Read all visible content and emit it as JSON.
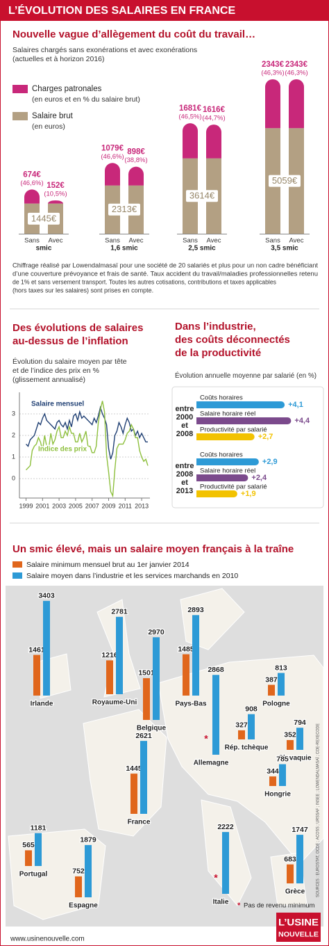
{
  "header": {
    "title": "L’ÉVOLUTION DES SALAIRES EN FRANCE"
  },
  "chart_data": [
    {
      "type": "stacked_pill_bar",
      "title": "Nouvelle vague d’allègement du coût du travail…",
      "subtitle": [
        "Salaires chargés sans exonérations et avec exonérations",
        "(actuelles et à horizon 2016)"
      ],
      "groups": [
        "smic",
        "1,6 smic",
        "2,5 smic",
        "3,5 smic"
      ],
      "subcategories": [
        "Sans",
        "Avec"
      ],
      "series": [
        {
          "name": "Charges patronales",
          "note": "(en euros et en % du salaire brut)",
          "color": "#c8287a",
          "values": [
            [
              674,
              152
            ],
            [
              1079,
              898
            ],
            [
              1681,
              1616
            ],
            [
              2343,
              2343
            ]
          ],
          "value_labels": [
            [
              "674€",
              "152€"
            ],
            [
              "1079€",
              "898€"
            ],
            [
              "1681€",
              "1616€"
            ],
            [
              "2343€",
              "2343€"
            ]
          ],
          "share_labels": [
            [
              "(46,6%)",
              "(10,5%)"
            ],
            [
              "(46,6%)",
              "(38,8%)"
            ],
            [
              "(46,5%)",
              "(44,7%)"
            ],
            [
              "(46,3%)",
              "(46,3%)"
            ]
          ]
        },
        {
          "name": "Salaire brut",
          "note": "(en euros)",
          "color": "#b3a083",
          "values": [
            1445,
            2313,
            3614,
            5059
          ],
          "value_labels": [
            "1445€",
            "2313€",
            "3614€",
            "5059€"
          ]
        }
      ],
      "footnote": [
        "Chiffrage réalisé par Lowendalmasaï pour une société de 20 salariés et plus pour un non cadre bénéficiant",
        "d’une couverture prévoyance et frais de santé. Taux accident du travail/maladies professionnelles retenu",
        "de 1% et sans versement transport. Toutes les autres cotisations, contributions et taxes applicables",
        "(hors taxes sur les salaires) sont prises en compte."
      ]
    },
    {
      "type": "line",
      "title": [
        "Des évolutions de salaires",
        "au-dessus de l’inflation"
      ],
      "subtitle": [
        "Évolution du salaire moyen par tête",
        "et de l’indice des prix en %",
        "(glissement annualisé)"
      ],
      "x": [
        1999,
        1999.25,
        1999.5,
        1999.75,
        2000,
        2000.25,
        2000.5,
        2000.75,
        2001,
        2001.25,
        2001.5,
        2001.75,
        2002,
        2002.25,
        2002.5,
        2002.75,
        2003,
        2003.25,
        2003.5,
        2003.75,
        2004,
        2004.25,
        2004.5,
        2004.75,
        2005,
        2005.25,
        2005.5,
        2005.75,
        2006,
        2006.25,
        2006.5,
        2006.75,
        2007,
        2007.25,
        2007.5,
        2007.75,
        2008,
        2008.25,
        2008.5,
        2008.75,
        2009,
        2009.25,
        2009.5,
        2009.75,
        2010,
        2010.25,
        2010.5,
        2010.75,
        2011,
        2011.25,
        2011.5,
        2011.75,
        2012,
        2012.25,
        2012.5,
        2012.75,
        2013,
        2013.25,
        2013.5,
        2013.75
      ],
      "xlim": [
        1998.2,
        2014
      ],
      "xticks": [
        1999,
        2001,
        2003,
        2005,
        2007,
        2009,
        2011,
        2013
      ],
      "ylim": [
        -0.9,
        4
      ],
      "yticks": [
        0,
        1,
        2,
        3
      ],
      "grid": true,
      "series": [
        {
          "name": "Salaire mensuel",
          "color": "#1f3f73",
          "values": [
            1.6,
            1.5,
            1.8,
            1.9,
            2.0,
            2.3,
            2.6,
            2.5,
            2.8,
            3.0,
            2.7,
            2.6,
            2.5,
            2.4,
            2.3,
            2.6,
            2.7,
            2.5,
            2.4,
            2.6,
            2.3,
            2.7,
            2.4,
            2.9,
            3.0,
            2.7,
            3.1,
            2.8,
            2.9,
            2.8,
            2.7,
            2.6,
            2.5,
            2.8,
            2.6,
            2.9,
            3.3,
            3.0,
            2.8,
            2.5,
            1.4,
            0.9,
            1.2,
            2.0,
            2.2,
            2.6,
            2.4,
            2.1,
            2.5,
            2.8,
            2.6,
            2.2,
            2.3,
            2.0,
            2.2,
            1.9,
            2.1,
            1.9,
            1.7,
            1.7
          ]
        },
        {
          "name": "Indice des prix",
          "color": "#8dbf3c",
          "values": [
            0.4,
            0.5,
            0.6,
            1.3,
            1.5,
            1.6,
            1.9,
            1.7,
            1.3,
            2.0,
            1.5,
            1.4,
            2.1,
            1.6,
            1.8,
            2.2,
            2.4,
            1.9,
            1.9,
            2.2,
            2.0,
            2.4,
            2.1,
            2.1,
            1.7,
            1.7,
            2.1,
            1.7,
            1.9,
            2.2,
            1.5,
            1.5,
            1.2,
            1.2,
            1.5,
            2.6,
            3.2,
            3.6,
            3.1,
            1.1,
            0.3,
            -0.6,
            -0.8,
            0.4,
            1.4,
            1.6,
            1.6,
            1.6,
            1.8,
            2.1,
            2.2,
            2.5,
            2.3,
            1.9,
            1.9,
            1.3,
            1.0,
            0.8,
            0.9,
            0.6
          ]
        }
      ]
    },
    {
      "type": "hbar_group",
      "title": [
        "Dans l’industrie,",
        "des coûts déconnectés",
        "de la productivité"
      ],
      "subtitle": "Évolution annuelle moyenne par salarié (en %)",
      "categories": [
        [
          "entre",
          "2000",
          "et",
          "2008"
        ],
        [
          "entre",
          "2008",
          "et",
          "2013"
        ]
      ],
      "series": [
        {
          "name": "Coûts horaires",
          "color": "#2d9ad6",
          "values": [
            4.1,
            2.9
          ],
          "value_labels": [
            "+4,1",
            "+2,9"
          ]
        },
        {
          "name": "Salaire horaire réel",
          "color": "#7b4a8c",
          "values": [
            4.4,
            2.4
          ],
          "value_labels": [
            "+4,4",
            "+2,4"
          ]
        },
        {
          "name": "Productivité par salarié",
          "color": "#f2c200",
          "values": [
            2.7,
            1.9
          ],
          "value_labels": [
            "+2,7",
            "+1,9"
          ]
        }
      ]
    },
    {
      "type": "map_bar",
      "title": "Un smic élevé, mais un salaire moyen français à la traîne",
      "categories": [
        "Irlande",
        "Royaume-Uni",
        "Belgique",
        "Pays-Bas",
        "Allemagne",
        "Pologne",
        "Rép. tchèque",
        "Slovaquie",
        "Hongrie",
        "France",
        "Portugal",
        "Espagne",
        "Italie",
        "Grèce"
      ],
      "series": [
        {
          "name": "Salaire minimum mensuel brut au 1er janvier 2014",
          "color": "#e0661c",
          "values": [
            1461,
            1216,
            1501,
            1485,
            null,
            387,
            327,
            352,
            344,
            1445,
            565,
            752,
            null,
            683
          ]
        },
        {
          "name": "Salaire moyen dans l’industrie et les services marchands en 2010",
          "color": "#2d9ad6",
          "values": [
            3403,
            2781,
            2970,
            2893,
            2868,
            813,
            908,
            794,
            785,
            2621,
            1181,
            1879,
            2222,
            1747
          ]
        }
      ],
      "null_mark": "*",
      "null_note": "Pas de revenu minimum"
    }
  ],
  "footer": {
    "sources": "SOURCES : EUROSTAT, OCDE ; ACOSS ; URSSAF ; INSEE ; LOWENDALMASAÏ ; COE-REXECODE",
    "url": "www.usinenouvelle.com",
    "logo": [
      "L’USINE",
      "NOUVELLE"
    ]
  }
}
